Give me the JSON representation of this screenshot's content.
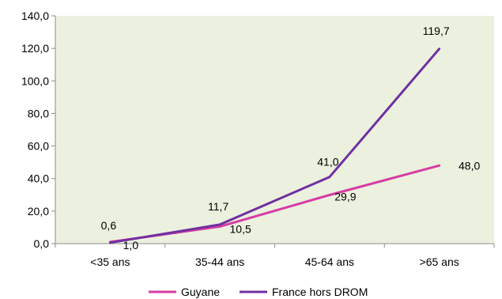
{
  "chart_data": {
    "type": "line",
    "categories": [
      "<35 ans",
      "35-44 ans",
      "45-64 ans",
      ">65 ans"
    ],
    "series": [
      {
        "name": "Guyane",
        "values": [
          1.0,
          10.5,
          29.9,
          48.0
        ],
        "labels": [
          "1,0",
          "10,5",
          "29,9",
          "48,0"
        ],
        "color": "#d63ca5"
      },
      {
        "name": "France hors DROM",
        "values": [
          0.6,
          11.7,
          41.0,
          119.7
        ],
        "labels": [
          "0,6",
          "11,7",
          "41,0",
          "119,7"
        ],
        "color": "#7030a0"
      }
    ],
    "ylim": [
      0,
      140
    ],
    "yticks": [
      "0,0",
      "20,0",
      "40,0",
      "60,0",
      "80,0",
      "100,0",
      "120,0",
      "140,0"
    ],
    "title": "",
    "xlabel": "",
    "ylabel": "",
    "grid": false,
    "plot_background": "#ebf1de",
    "legend_position": "bottom"
  }
}
